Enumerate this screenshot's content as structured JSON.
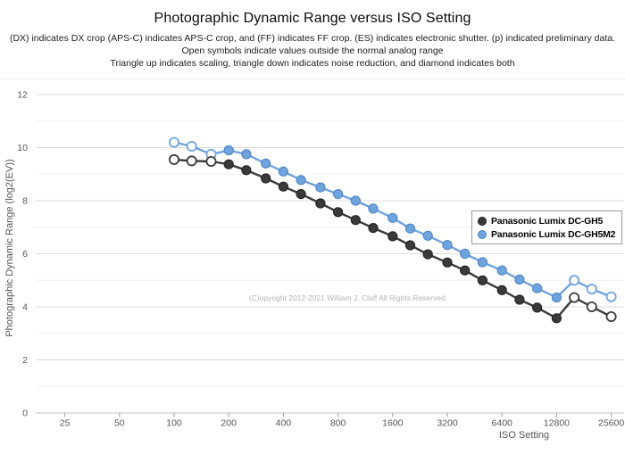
{
  "header": {
    "title": "Photographic Dynamic Range versus ISO Setting",
    "subtitle_lines": [
      "(DX) indicates DX crop (APS-C) indicates APS-C crop, and (FF) indicates FF crop. (ES) indicates electronic shutter. (p) indicated preliminary data.",
      "Open symbols indicate values outside the normal analog range",
      "Triangle up indicates scaling, triangle down indicates noise reduction, and diamond indicates both"
    ]
  },
  "chart_data": {
    "type": "line",
    "title": "Photographic Dynamic Range versus ISO Setting",
    "xlabel": "ISO Setting",
    "ylabel": "Photographic Dynamic Range (log2(EV))",
    "x_scale": "log2",
    "grid": "horizontal",
    "legend_position": "middle-right",
    "annotation": "(C)opyright 2012-2021 William J. Claff All Rights Reserved.",
    "x": [
      100,
      125,
      160,
      200,
      250,
      320,
      400,
      500,
      640,
      800,
      1000,
      1250,
      1600,
      2000,
      2500,
      3200,
      4000,
      5000,
      6400,
      8000,
      10000,
      12800,
      16000,
      20000,
      25600
    ],
    "x_ticks": [
      25,
      50,
      100,
      200,
      400,
      800,
      1600,
      3200,
      6400,
      12800,
      25600
    ],
    "y_ticks": [
      0,
      2,
      4,
      6,
      8,
      10,
      12
    ],
    "ylim": [
      0,
      12.3
    ],
    "xlim_iso": [
      20,
      28000
    ],
    "series": [
      {
        "name": "Panasonic Lumix DC-GH5",
        "color": "#3a3a3a",
        "edge_color": "#1f1f1f",
        "values": [
          9.55,
          9.5,
          9.48,
          9.37,
          9.15,
          8.84,
          8.53,
          8.25,
          7.9,
          7.57,
          7.27,
          6.97,
          6.66,
          6.32,
          5.98,
          5.67,
          5.37,
          5.0,
          4.63,
          4.27,
          3.97,
          3.57,
          4.35,
          4.0,
          3.63
        ],
        "open_points": [
          100,
          125,
          160,
          16000,
          20000,
          25600
        ]
      },
      {
        "name": "Panasonic Lumix DC-GH5M2",
        "color": "#6ea3dd",
        "edge_color": "#4c82c4",
        "values": [
          10.2,
          10.05,
          9.75,
          9.9,
          9.75,
          9.4,
          9.1,
          8.78,
          8.5,
          8.25,
          8.0,
          7.7,
          7.35,
          6.95,
          6.68,
          6.33,
          6.0,
          5.68,
          5.37,
          5.03,
          4.7,
          4.35,
          5.0,
          4.67,
          4.38
        ],
        "open_points": [
          100,
          125,
          160,
          16000,
          20000,
          25600
        ]
      }
    ]
  }
}
